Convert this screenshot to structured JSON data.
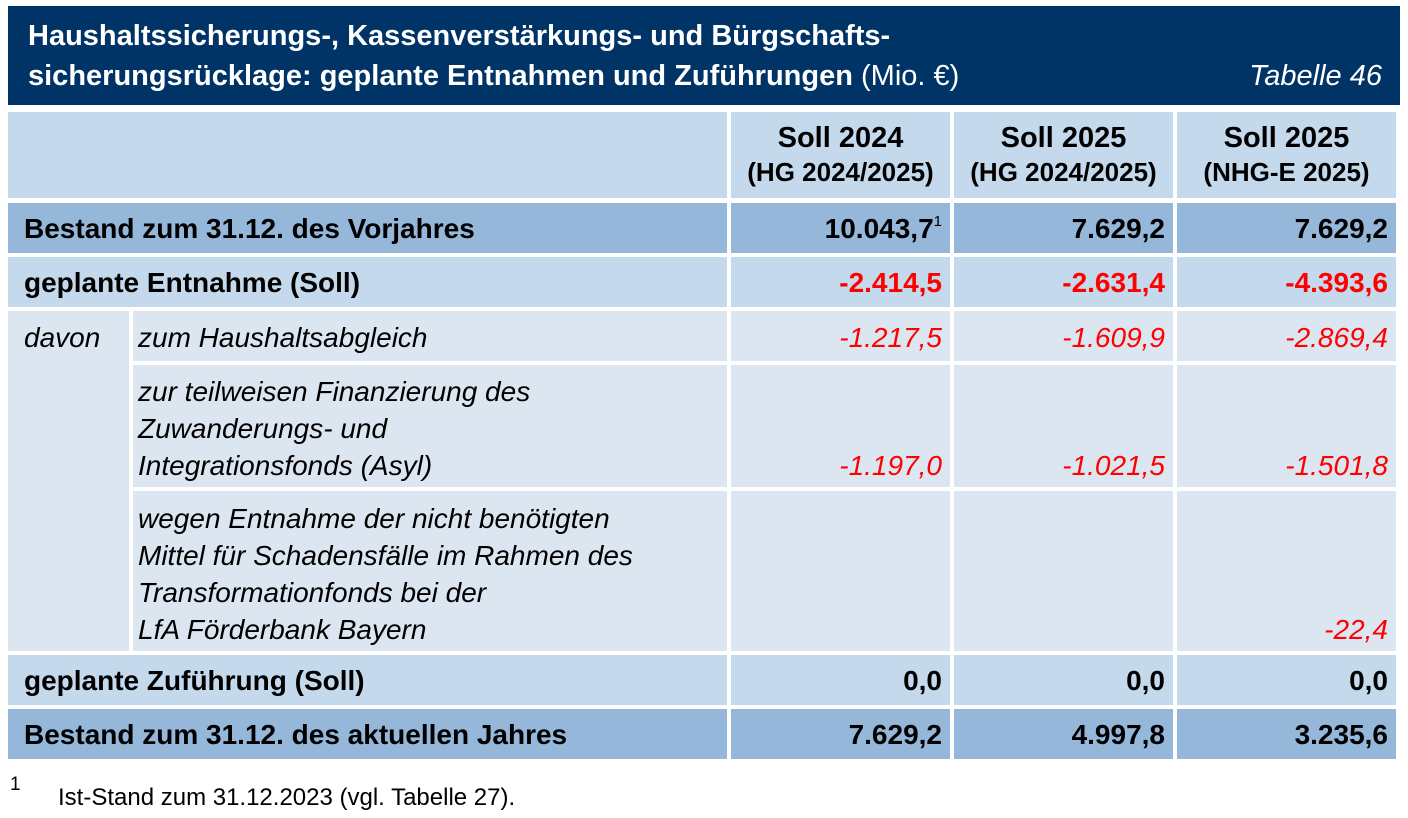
{
  "title": {
    "line1": "Haushaltssicherungs-, Kassenverstärkungs- und Bürgschafts-",
    "line2_bold": "sicherungsrücklage: geplante Entnahmen und Zuführungen",
    "line2_unit": " (Mio. €)",
    "table_no": "Tabelle 46"
  },
  "columns": [
    {
      "line1": "Soll 2024",
      "line2": "(HG 2024/2025)"
    },
    {
      "line1": "Soll 2025",
      "line2": "(HG 2024/2025)"
    },
    {
      "line1": "Soll 2025",
      "line2": "(NHG-E 2025)"
    }
  ],
  "rows": {
    "bestand_vorjahr": {
      "label": "Bestand zum 31.12. des Vorjahres",
      "values": [
        "10.043,7",
        "7.629,2",
        "7.629,2"
      ],
      "footnote_mark": "1"
    },
    "entnahme": {
      "label": "geplante Entnahme (Soll)",
      "values": [
        "-2.414,5",
        "-2.631,4",
        "-4.393,6"
      ]
    },
    "davon_label": "davon",
    "haushaltsabgleich": {
      "label": "zum Haushaltsabgleich",
      "values": [
        "-1.217,5",
        "-1.609,9",
        "-2.869,4"
      ]
    },
    "asyl": {
      "label_lines": [
        "zur teilweisen Finanzierung des",
        "Zuwanderungs- und",
        "Integrationsfonds (Asyl)"
      ],
      "values": [
        "-1.197,0",
        "-1.021,5",
        "-1.501,8"
      ]
    },
    "lfa": {
      "label_lines": [
        "wegen Entnahme der nicht benötigten",
        "Mittel für Schadensfälle im Rahmen des",
        "Transformationfonds bei der",
        "LfA Förderbank Bayern"
      ],
      "values": [
        "",
        "",
        "-22,4"
      ]
    },
    "zufuehrung": {
      "label": "geplante Zuführung (Soll)",
      "values": [
        "0,0",
        "0,0",
        "0,0"
      ]
    },
    "bestand_aktuell": {
      "label": "Bestand zum 31.12. des aktuellen Jahres",
      "values": [
        "7.629,2",
        "4.997,8",
        "3.235,6"
      ]
    }
  },
  "footnote": {
    "mark": "1",
    "text": "Ist-Stand zum 31.12.2023 (vgl. Tabelle 27)."
  },
  "colors": {
    "title_bg": "#003366",
    "main_row": "#95b7da",
    "light_row": "#c5d9ec",
    "pale_row": "#dce6f1",
    "negative": "#ff0000"
  }
}
